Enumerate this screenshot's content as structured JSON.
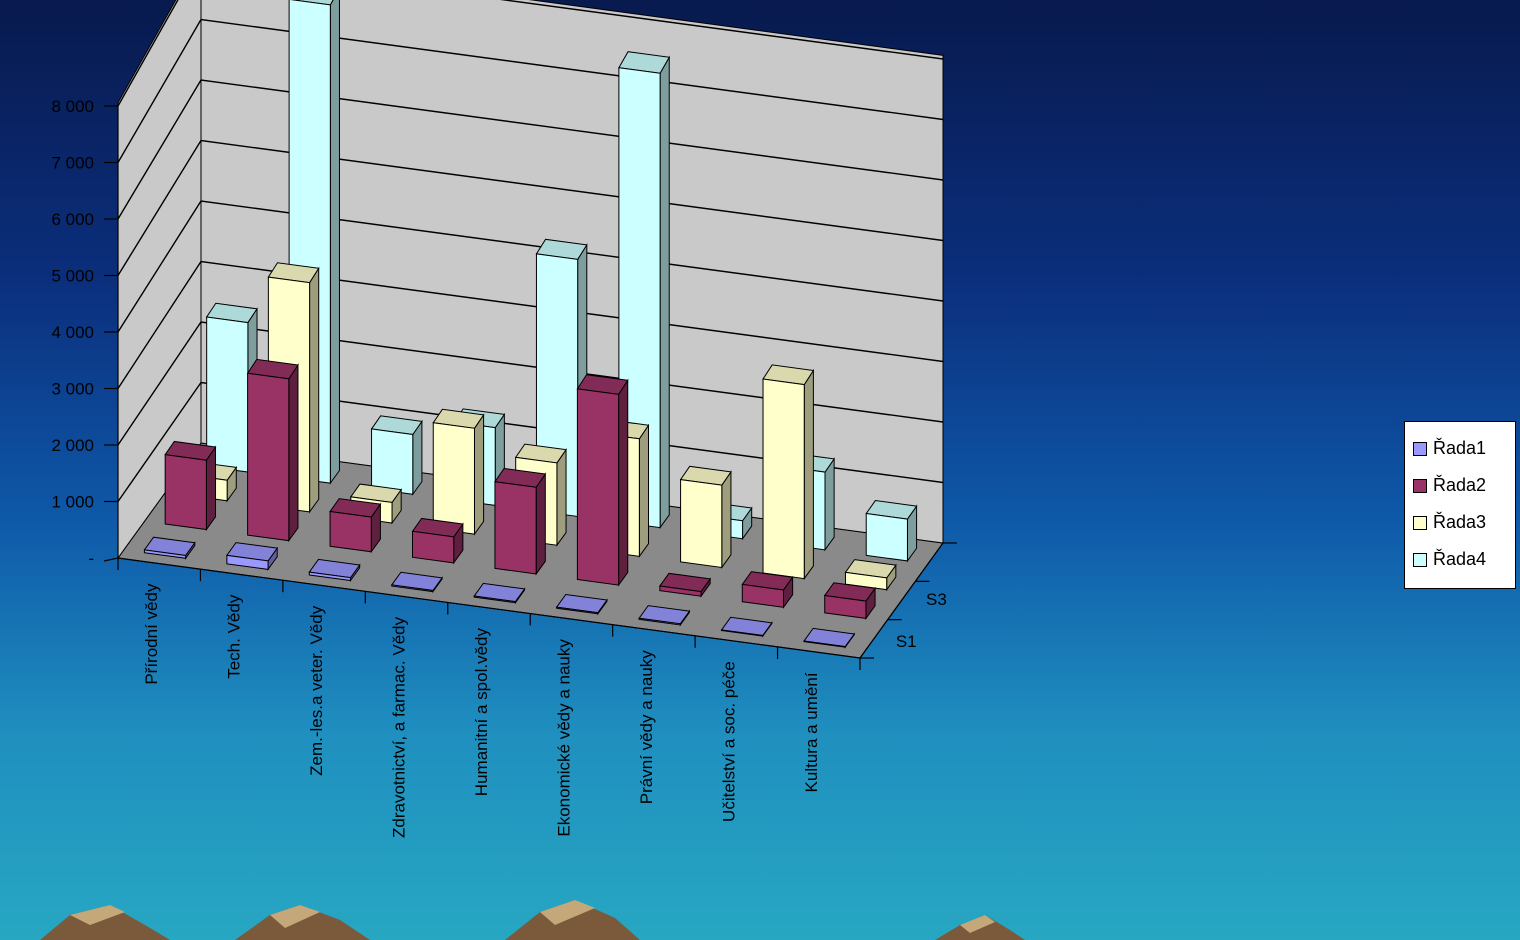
{
  "colors": {
    "background_top": "#081a4e",
    "background_bottom": "#27a7c2",
    "wall": "#c9c9c9",
    "floor": "#8a8a8a"
  },
  "chart_data": {
    "type": "bar",
    "subtype": "3d-clustered-depth",
    "categories": [
      "Přírodní vědy",
      "Tech. Vědy",
      "Zem.-les.a veter. Vědy",
      "Zdravotnictví, a farmac. Vědy",
      "Humanitní a spol.vědy",
      "Ekonomické vědy a nauky",
      "Právní vědy a nauky",
      "Učitelství a soc. péče",
      "Kultura a umění"
    ],
    "y_ticks": [
      "-",
      "1 000",
      "2 000",
      "3 000",
      "4 000",
      "5 000",
      "6 000",
      "7 000",
      "8 000"
    ],
    "ylim": [
      0,
      8000
    ],
    "depth_labels": [
      "S1",
      "S3"
    ],
    "series": [
      {
        "name": "Řada1",
        "color": "#9999ff",
        "values": [
          50,
          150,
          50,
          20,
          20,
          20,
          20,
          10,
          10
        ]
      },
      {
        "name": "Řada2",
        "color": "#993366",
        "values": [
          1200,
          2800,
          600,
          450,
          1500,
          3300,
          80,
          300,
          300
        ]
      },
      {
        "name": "Řada3",
        "color": "#ffffcc",
        "values": [
          350,
          3900,
          350,
          1800,
          1400,
          2000,
          1400,
          3300,
          200
        ]
      },
      {
        "name": "Řada4",
        "color": "#ccffff",
        "values": [
          2500,
          8000,
          1000,
          1300,
          4300,
          7600,
          300,
          1300,
          700
        ]
      }
    ],
    "grid": true,
    "legend_position": "right"
  }
}
